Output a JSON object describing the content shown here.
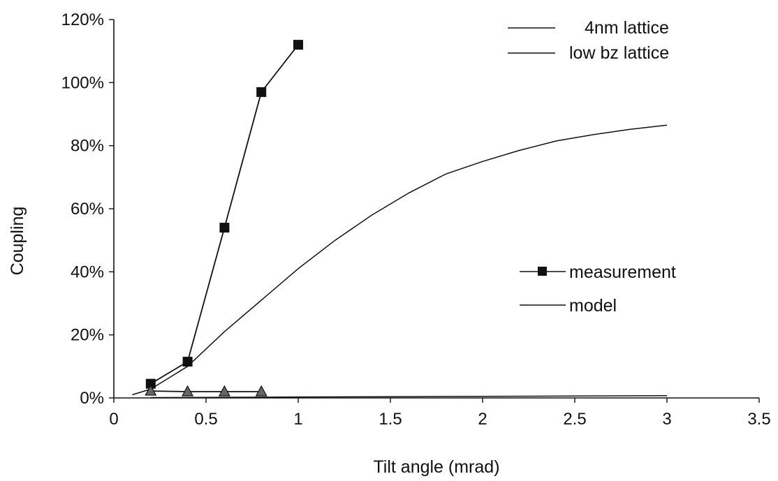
{
  "chart_data": {
    "type": "line",
    "title": "",
    "xlabel": "Tilt angle (mrad)",
    "ylabel": "Coupling",
    "xlim": [
      0,
      3.5
    ],
    "ylim": [
      0,
      120
    ],
    "x_ticks": [
      "0",
      "0.5",
      "1",
      "1.5",
      "2",
      "2.5",
      "3",
      "3.5"
    ],
    "y_ticks": [
      "0%",
      "20%",
      "40%",
      "60%",
      "80%",
      "100%",
      "120%"
    ],
    "grid": false,
    "legend_groups": [
      {
        "placement": "top-right",
        "entries": [
          "4nm lattice",
          "low bz lattice"
        ]
      },
      {
        "placement": "center-right",
        "entries": [
          "measurement",
          "model"
        ]
      }
    ],
    "series": [
      {
        "name": "measurement",
        "lattice": "4nm lattice",
        "marker": "square",
        "x": [
          0.2,
          0.4,
          0.6,
          0.8,
          1.0
        ],
        "y": [
          4.5,
          11.5,
          54,
          97,
          112
        ]
      },
      {
        "name": "model",
        "lattice": "4nm lattice",
        "marker": "none",
        "x": [
          0.1,
          0.2,
          0.4,
          0.6,
          0.8,
          1.0,
          1.2,
          1.4,
          1.6,
          1.8,
          2.0,
          2.2,
          2.4,
          2.6,
          2.8,
          3.0
        ],
        "y": [
          1,
          2.8,
          10,
          21,
          31,
          41,
          50,
          58,
          65,
          71,
          75,
          78.5,
          81.5,
          83.5,
          85.2,
          86.5
        ]
      },
      {
        "name": "measurement",
        "lattice": "low bz lattice",
        "marker": "triangle",
        "x": [
          0.2,
          0.4,
          0.6,
          0.8
        ],
        "y": [
          2.2,
          2.0,
          2.0,
          2.0
        ]
      },
      {
        "name": "model",
        "lattice": "low bz lattice",
        "marker": "none",
        "x": [
          0.2,
          0.6,
          1.0,
          1.5,
          2.0,
          2.5,
          3.0
        ],
        "y": [
          0.1,
          0.2,
          0.3,
          0.4,
          0.5,
          0.6,
          0.7
        ]
      }
    ]
  }
}
